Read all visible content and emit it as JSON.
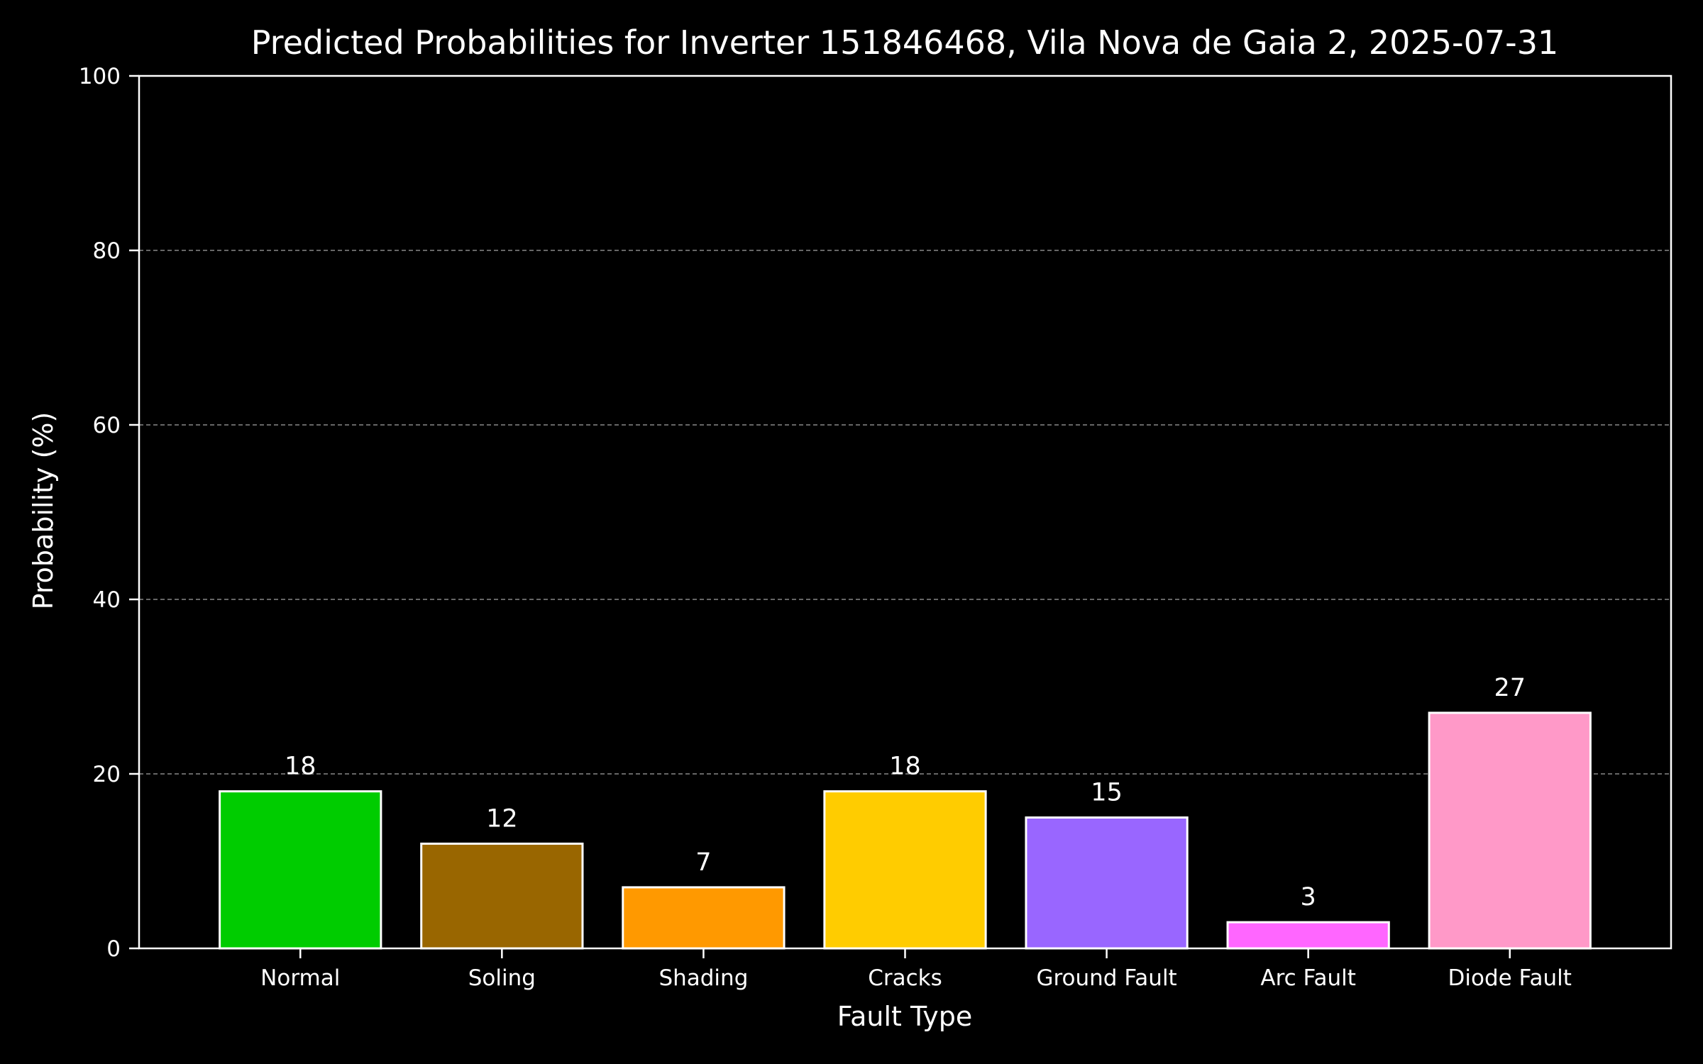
{
  "chart_data": {
    "type": "bar",
    "title": "Predicted Probabilities for Inverter 151846468, Vila Nova de Gaia 2, 2025-07-31",
    "xlabel": "Fault Type",
    "ylabel": "Probability (%)",
    "ylim": [
      0,
      100
    ],
    "yticks": [
      0,
      20,
      40,
      60,
      80,
      100
    ],
    "grid": "horizontal dashed at major ticks",
    "categories": [
      "Normal",
      "Soling",
      "Shading",
      "Cracks",
      "Ground Fault",
      "Arc Fault",
      "Diode Fault"
    ],
    "values": [
      18,
      12,
      7,
      18,
      15,
      3,
      27
    ],
    "value_labels": [
      "18",
      "12",
      "7",
      "18",
      "15",
      "3",
      "27"
    ],
    "colors": [
      "#00cc00",
      "#996600",
      "#ff9900",
      "#ffcc00",
      "#9966ff",
      "#ff66ff",
      "#ff99c8"
    ],
    "background": "#000000",
    "foreground": "#ffffff",
    "grid_color": "#888888"
  }
}
